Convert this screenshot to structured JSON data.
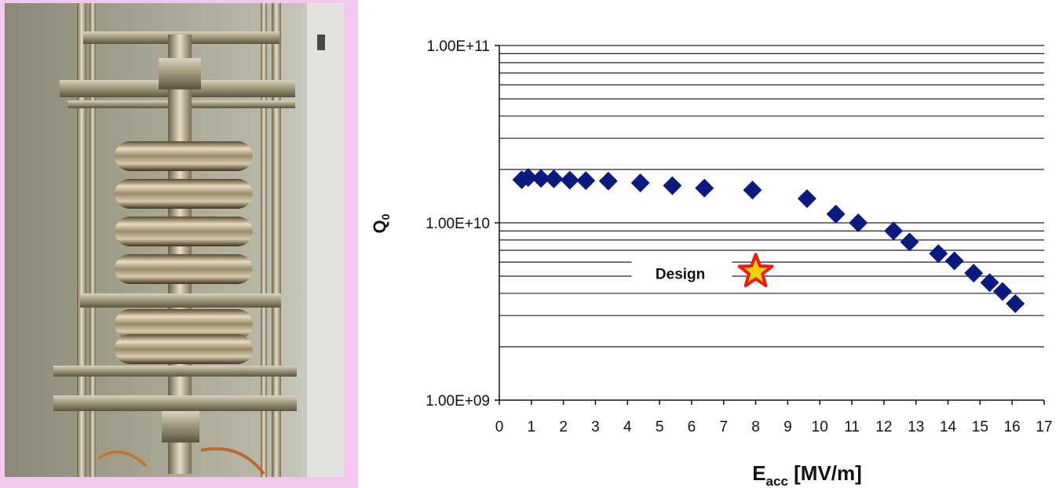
{
  "photo": {
    "subject": "multi-cell superconducting RF cavity in vertical test stand",
    "colors": {
      "panel_border": "#f4c8ee"
    }
  },
  "chart_data": {
    "type": "scatter",
    "title": "",
    "xlabel_main": "E",
    "xlabel_sub": "acc",
    "xlabel_rest": " [MV/m]",
    "ylabel_main": "Q",
    "ylabel_sub": "0",
    "xlim": [
      0,
      17
    ],
    "ylim": [
      1000000000.0,
      100000000000.0
    ],
    "yscale": "log",
    "x_ticks": [
      "0",
      "1",
      "2",
      "3",
      "4",
      "5",
      "6",
      "7",
      "8",
      "9",
      "10",
      "11",
      "12",
      "13",
      "14",
      "15",
      "16",
      "17"
    ],
    "y_ticks": [
      {
        "value": 100000000000.0,
        "label": "1.00E+11"
      },
      {
        "value": 10000000000.0,
        "label": "1.00E+10"
      },
      {
        "value": 1000000000.0,
        "label": "1.00E+09"
      }
    ],
    "grid": "horizontal minor log gridlines",
    "series": [
      {
        "marker": "diamond",
        "color": "#0b1a80",
        "points": [
          {
            "x": 0.7,
            "y": 17500000000.0
          },
          {
            "x": 0.9,
            "y": 18000000000.0
          },
          {
            "x": 1.3,
            "y": 17800000000.0
          },
          {
            "x": 1.7,
            "y": 17700000000.0
          },
          {
            "x": 2.2,
            "y": 17400000000.0
          },
          {
            "x": 2.7,
            "y": 17300000000.0
          },
          {
            "x": 3.4,
            "y": 17200000000.0
          },
          {
            "x": 4.4,
            "y": 16800000000.0
          },
          {
            "x": 5.4,
            "y": 16200000000.0
          },
          {
            "x": 6.4,
            "y": 15700000000.0
          },
          {
            "x": 7.9,
            "y": 15300000000.0
          },
          {
            "x": 9.6,
            "y": 13700000000.0
          },
          {
            "x": 10.5,
            "y": 11200000000.0
          },
          {
            "x": 11.2,
            "y": 10000000000.0
          },
          {
            "x": 12.3,
            "y": 9000000000.0
          },
          {
            "x": 12.8,
            "y": 7800000000.0
          },
          {
            "x": 13.7,
            "y": 6700000000.0
          },
          {
            "x": 14.2,
            "y": 6100000000.0
          },
          {
            "x": 14.8,
            "y": 5200000000.0
          },
          {
            "x": 15.3,
            "y": 4600000000.0
          },
          {
            "x": 15.7,
            "y": 4100000000.0
          },
          {
            "x": 16.1,
            "y": 3500000000.0
          }
        ]
      }
    ],
    "annotation": {
      "text": "Design",
      "marker": "star",
      "x": 8.0,
      "y": 5300000000.0,
      "star_fill": "#f0d400",
      "star_stroke": "#ee1b10"
    }
  }
}
